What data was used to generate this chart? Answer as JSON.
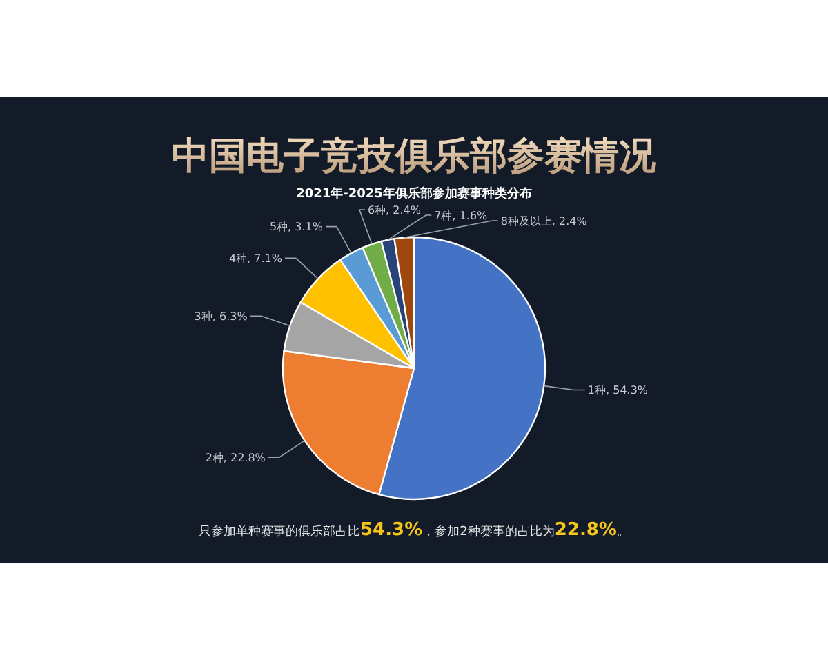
{
  "chart_data": {
    "type": "pie",
    "title": "中国电子竞技俱乐部参赛情况",
    "subtitle": "2021年-2025年俱乐部参加赛事种类分布",
    "categories": [
      "1种, 54.3%",
      "2种, 22.8%",
      "3种, 6.3%",
      "4种, 7.1%",
      "5种, 3.1%",
      "6种, 2.4%",
      "7种, 1.6%",
      "8种及以上, 2.4%"
    ],
    "values": [
      54.3,
      22.8,
      6.3,
      7.1,
      3.1,
      2.4,
      1.6,
      2.4
    ],
    "colors": [
      "#4472c4",
      "#ed7d31",
      "#a5a5a5",
      "#ffc000",
      "#5b9bd5",
      "#70ad47",
      "#264478",
      "#9e480e"
    ],
    "annotations": [
      "只参加单种赛事的俱乐部占比54.3%，参加2种赛事的占比为22.8%。"
    ]
  }
}
